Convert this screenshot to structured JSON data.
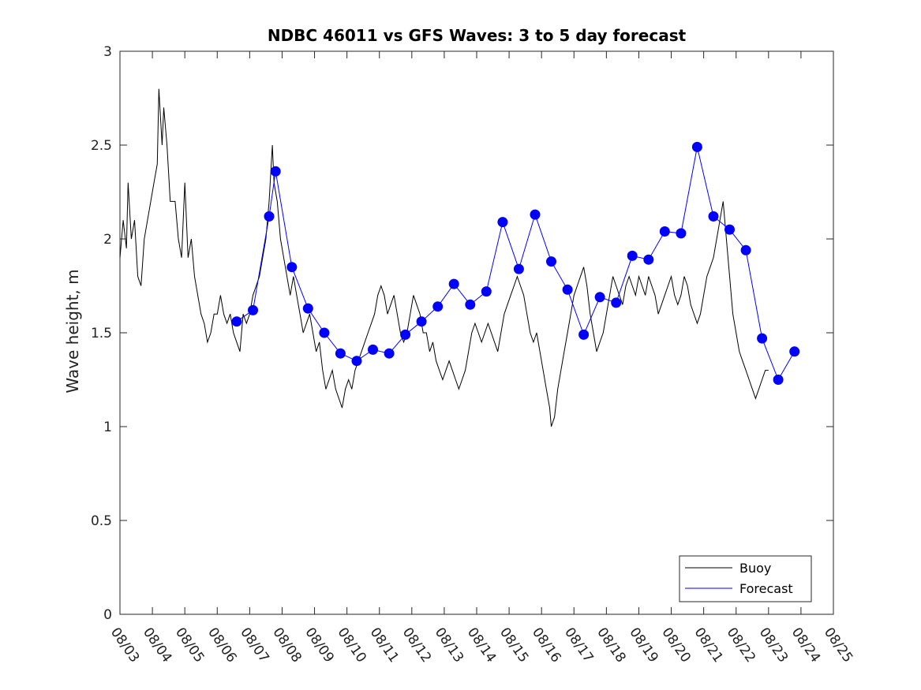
{
  "chart_data": {
    "type": "line",
    "title": "NDBC 46011 vs GFS Waves: 3 to 5 day forecast",
    "xlabel": "",
    "ylabel": "Wave height, m",
    "xlim": [
      0,
      22
    ],
    "ylim": [
      0,
      3
    ],
    "grid": false,
    "legend_position": "bottom-right",
    "x_tick_labels": [
      "08/03",
      "08/04",
      "08/05",
      "08/06",
      "08/07",
      "08/08",
      "08/09",
      "08/10",
      "08/11",
      "08/12",
      "08/13",
      "08/14",
      "08/15",
      "08/16",
      "08/17",
      "08/18",
      "08/19",
      "08/20",
      "08/21",
      "08/22",
      "08/23",
      "08/24",
      "08/25"
    ],
    "y_ticks": [
      0,
      0.5,
      1,
      1.5,
      2,
      2.5,
      3
    ],
    "y_tick_labels": [
      "0",
      "0.5",
      "1",
      "1.5",
      "2",
      "2.5",
      "3"
    ],
    "legend": [
      "Buoy",
      "Forecast"
    ],
    "colors": {
      "buoy": "#000000",
      "forecast": "#0000ff"
    },
    "series": [
      {
        "name": "Buoy",
        "x_unit": "days since 08/03",
        "points": [
          [
            0,
            1.9
          ],
          [
            0.1,
            2.1
          ],
          [
            0.2,
            1.95
          ],
          [
            0.25,
            2.3
          ],
          [
            0.35,
            2.0
          ],
          [
            0.45,
            2.1
          ],
          [
            0.55,
            1.8
          ],
          [
            0.65,
            1.75
          ],
          [
            0.75,
            2.0
          ],
          [
            0.85,
            2.1
          ],
          [
            0.95,
            2.2
          ],
          [
            1.05,
            2.3
          ],
          [
            1.15,
            2.4
          ],
          [
            1.2,
            2.8
          ],
          [
            1.3,
            2.5
          ],
          [
            1.35,
            2.7
          ],
          [
            1.45,
            2.5
          ],
          [
            1.55,
            2.2
          ],
          [
            1.7,
            2.2
          ],
          [
            1.8,
            2.0
          ],
          [
            1.9,
            1.9
          ],
          [
            2.0,
            2.3
          ],
          [
            2.1,
            1.9
          ],
          [
            2.2,
            2.0
          ],
          [
            2.3,
            1.8
          ],
          [
            2.4,
            1.7
          ],
          [
            2.5,
            1.6
          ],
          [
            2.6,
            1.55
          ],
          [
            2.7,
            1.45
          ],
          [
            2.8,
            1.5
          ],
          [
            2.9,
            1.6
          ],
          [
            3.0,
            1.6
          ],
          [
            3.1,
            1.7
          ],
          [
            3.2,
            1.6
          ],
          [
            3.3,
            1.55
          ],
          [
            3.4,
            1.6
          ],
          [
            3.5,
            1.5
          ],
          [
            3.6,
            1.45
          ],
          [
            3.7,
            1.4
          ],
          [
            3.8,
            1.6
          ],
          [
            3.9,
            1.55
          ],
          [
            4.0,
            1.6
          ],
          [
            4.1,
            1.7
          ],
          [
            4.2,
            1.75
          ],
          [
            4.3,
            1.8
          ],
          [
            4.4,
            1.9
          ],
          [
            4.5,
            2.0
          ],
          [
            4.6,
            2.2
          ],
          [
            4.7,
            2.5
          ],
          [
            4.75,
            2.3
          ],
          [
            4.85,
            2.2
          ],
          [
            4.95,
            2.0
          ],
          [
            5.05,
            1.9
          ],
          [
            5.15,
            1.8
          ],
          [
            5.25,
            1.7
          ],
          [
            5.35,
            1.8
          ],
          [
            5.45,
            1.7
          ],
          [
            5.55,
            1.6
          ],
          [
            5.65,
            1.5
          ],
          [
            5.75,
            1.55
          ],
          [
            5.85,
            1.6
          ],
          [
            5.95,
            1.5
          ],
          [
            6.05,
            1.4
          ],
          [
            6.15,
            1.45
          ],
          [
            6.25,
            1.3
          ],
          [
            6.35,
            1.2
          ],
          [
            6.45,
            1.25
          ],
          [
            6.55,
            1.3
          ],
          [
            6.65,
            1.2
          ],
          [
            6.75,
            1.15
          ],
          [
            6.85,
            1.1
          ],
          [
            6.95,
            1.2
          ],
          [
            7.05,
            1.25
          ],
          [
            7.15,
            1.2
          ],
          [
            7.25,
            1.3
          ],
          [
            7.35,
            1.35
          ],
          [
            7.45,
            1.4
          ],
          [
            7.55,
            1.45
          ],
          [
            7.65,
            1.5
          ],
          [
            7.75,
            1.55
          ],
          [
            7.85,
            1.6
          ],
          [
            7.95,
            1.7
          ],
          [
            8.05,
            1.75
          ],
          [
            8.15,
            1.7
          ],
          [
            8.25,
            1.6
          ],
          [
            8.35,
            1.65
          ],
          [
            8.45,
            1.7
          ],
          [
            8.55,
            1.6
          ],
          [
            8.65,
            1.5
          ],
          [
            8.75,
            1.45
          ],
          [
            8.85,
            1.5
          ],
          [
            8.95,
            1.6
          ],
          [
            9.05,
            1.7
          ],
          [
            9.15,
            1.65
          ],
          [
            9.25,
            1.6
          ],
          [
            9.35,
            1.5
          ],
          [
            9.45,
            1.5
          ],
          [
            9.55,
            1.4
          ],
          [
            9.65,
            1.45
          ],
          [
            9.75,
            1.35
          ],
          [
            9.85,
            1.3
          ],
          [
            9.95,
            1.25
          ],
          [
            10.05,
            1.3
          ],
          [
            10.15,
            1.35
          ],
          [
            10.25,
            1.3
          ],
          [
            10.35,
            1.25
          ],
          [
            10.45,
            1.2
          ],
          [
            10.55,
            1.25
          ],
          [
            10.65,
            1.3
          ],
          [
            10.75,
            1.4
          ],
          [
            10.85,
            1.5
          ],
          [
            10.95,
            1.55
          ],
          [
            11.05,
            1.5
          ],
          [
            11.15,
            1.45
          ],
          [
            11.25,
            1.5
          ],
          [
            11.35,
            1.55
          ],
          [
            11.45,
            1.5
          ],
          [
            11.55,
            1.45
          ],
          [
            11.65,
            1.4
          ],
          [
            11.75,
            1.5
          ],
          [
            11.85,
            1.6
          ],
          [
            11.95,
            1.65
          ],
          [
            12.05,
            1.7
          ],
          [
            12.15,
            1.75
          ],
          [
            12.25,
            1.8
          ],
          [
            12.35,
            1.75
          ],
          [
            12.45,
            1.7
          ],
          [
            12.55,
            1.6
          ],
          [
            12.65,
            1.5
          ],
          [
            12.75,
            1.45
          ],
          [
            12.85,
            1.5
          ],
          [
            12.95,
            1.4
          ],
          [
            13.05,
            1.3
          ],
          [
            13.15,
            1.2
          ],
          [
            13.25,
            1.1
          ],
          [
            13.3,
            1.0
          ],
          [
            13.4,
            1.05
          ],
          [
            13.5,
            1.2
          ],
          [
            13.6,
            1.3
          ],
          [
            13.7,
            1.4
          ],
          [
            13.8,
            1.5
          ],
          [
            13.9,
            1.6
          ],
          [
            14.0,
            1.7
          ],
          [
            14.1,
            1.75
          ],
          [
            14.2,
            1.8
          ],
          [
            14.3,
            1.85
          ],
          [
            14.4,
            1.75
          ],
          [
            14.5,
            1.6
          ],
          [
            14.6,
            1.5
          ],
          [
            14.7,
            1.4
          ],
          [
            14.8,
            1.45
          ],
          [
            14.9,
            1.5
          ],
          [
            15.0,
            1.6
          ],
          [
            15.1,
            1.7
          ],
          [
            15.2,
            1.8
          ],
          [
            15.3,
            1.75
          ],
          [
            15.4,
            1.7
          ],
          [
            15.5,
            1.65
          ],
          [
            15.6,
            1.75
          ],
          [
            15.7,
            1.8
          ],
          [
            15.8,
            1.75
          ],
          [
            15.9,
            1.7
          ],
          [
            16.0,
            1.8
          ],
          [
            16.1,
            1.75
          ],
          [
            16.2,
            1.7
          ],
          [
            16.3,
            1.8
          ],
          [
            16.4,
            1.75
          ],
          [
            16.5,
            1.7
          ],
          [
            16.6,
            1.6
          ],
          [
            16.7,
            1.65
          ],
          [
            16.8,
            1.7
          ],
          [
            16.9,
            1.75
          ],
          [
            17.0,
            1.8
          ],
          [
            17.1,
            1.7
          ],
          [
            17.2,
            1.65
          ],
          [
            17.3,
            1.7
          ],
          [
            17.4,
            1.8
          ],
          [
            17.5,
            1.75
          ],
          [
            17.6,
            1.65
          ],
          [
            17.7,
            1.6
          ],
          [
            17.8,
            1.55
          ],
          [
            17.9,
            1.6
          ],
          [
            18.0,
            1.7
          ],
          [
            18.1,
            1.8
          ],
          [
            18.2,
            1.85
          ],
          [
            18.3,
            1.9
          ],
          [
            18.4,
            2.0
          ],
          [
            18.5,
            2.1
          ],
          [
            18.6,
            2.2
          ],
          [
            18.7,
            2.0
          ],
          [
            18.8,
            1.8
          ],
          [
            18.9,
            1.6
          ],
          [
            19.0,
            1.5
          ],
          [
            19.1,
            1.4
          ],
          [
            19.2,
            1.35
          ],
          [
            19.3,
            1.3
          ],
          [
            19.4,
            1.25
          ],
          [
            19.5,
            1.2
          ],
          [
            19.6,
            1.15
          ],
          [
            19.7,
            1.2
          ],
          [
            19.8,
            1.25
          ],
          [
            19.9,
            1.3
          ],
          [
            20.0,
            1.3
          ]
        ]
      },
      {
        "name": "Forecast",
        "x_unit": "days since 08/03",
        "points": [
          [
            3.6,
            1.56
          ],
          [
            4.1,
            1.62
          ],
          [
            4.6,
            2.12
          ],
          [
            4.8,
            2.36
          ],
          [
            5.3,
            1.85
          ],
          [
            5.8,
            1.63
          ],
          [
            6.3,
            1.5
          ],
          [
            6.8,
            1.39
          ],
          [
            7.3,
            1.35
          ],
          [
            7.8,
            1.41
          ],
          [
            8.3,
            1.39
          ],
          [
            8.8,
            1.49
          ],
          [
            9.3,
            1.56
          ],
          [
            9.8,
            1.64
          ],
          [
            10.3,
            1.76
          ],
          [
            10.8,
            1.65
          ],
          [
            11.3,
            1.72
          ],
          [
            11.8,
            2.09
          ],
          [
            12.3,
            1.84
          ],
          [
            12.8,
            2.13
          ],
          [
            13.3,
            1.88
          ],
          [
            13.8,
            1.73
          ],
          [
            14.3,
            1.49
          ],
          [
            14.8,
            1.69
          ],
          [
            15.3,
            1.66
          ],
          [
            15.8,
            1.91
          ],
          [
            16.3,
            1.89
          ],
          [
            16.8,
            2.04
          ],
          [
            17.3,
            2.03
          ],
          [
            17.8,
            2.49
          ],
          [
            18.3,
            2.12
          ],
          [
            18.8,
            2.05
          ],
          [
            19.3,
            1.94
          ],
          [
            19.8,
            1.47
          ],
          [
            20.3,
            1.25
          ],
          [
            20.8,
            1.4
          ]
        ]
      }
    ]
  }
}
